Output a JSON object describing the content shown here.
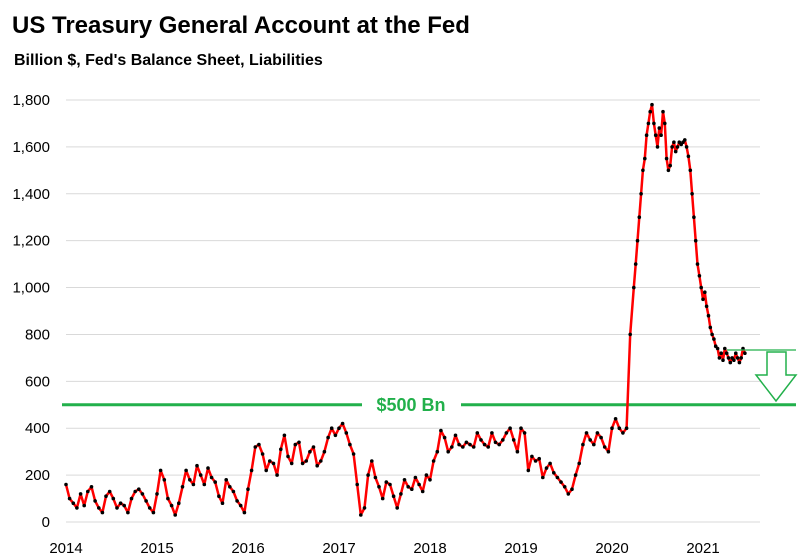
{
  "chart_data": {
    "type": "line",
    "title": "US Treasury General Account at the Fed",
    "subtitle": "Billion $, Fed's Balance Sheet, Liabilities",
    "xlabel": "",
    "ylabel": "",
    "xlim": [
      2014.0,
      2021.55
    ],
    "ylim": [
      0,
      1800
    ],
    "grid": true,
    "x_ticks": [
      "2014",
      "2015",
      "2016",
      "2017",
      "2018",
      "2019",
      "2020",
      "2021"
    ],
    "y_ticks": [
      "0",
      "200",
      "400",
      "600",
      "800",
      "1,000",
      "1,200",
      "1,400",
      "1,600",
      "1,800"
    ],
    "series_color": "#ff0000",
    "marker_color": "#000000",
    "reference_line": {
      "value": 500,
      "label": "$500 Bn",
      "color": "#22b04b"
    },
    "annotation": {
      "type": "down-arrow",
      "color": "#22b04b"
    },
    "series": [
      {
        "x": [
          2014.0,
          2014.04,
          2014.08,
          2014.12,
          2014.16,
          2014.2,
          2014.24,
          2014.28,
          2014.32,
          2014.36,
          2014.4,
          2014.44,
          2014.48,
          2014.52,
          2014.56,
          2014.6,
          2014.64,
          2014.68,
          2014.72,
          2014.76,
          2014.8,
          2014.84,
          2014.88,
          2014.92,
          2014.96,
          2015.0,
          2015.04,
          2015.08,
          2015.12,
          2015.16,
          2015.2,
          2015.24,
          2015.28,
          2015.32,
          2015.36,
          2015.4,
          2015.44,
          2015.48,
          2015.52,
          2015.56,
          2015.6,
          2015.64,
          2015.68,
          2015.72,
          2015.76,
          2015.8,
          2015.84,
          2015.88,
          2015.92,
          2015.96,
          2016.0,
          2016.04,
          2016.08,
          2016.12,
          2016.16,
          2016.2,
          2016.24,
          2016.28,
          2016.32,
          2016.36,
          2016.4,
          2016.44,
          2016.48,
          2016.52,
          2016.56,
          2016.6,
          2016.64,
          2016.68,
          2016.72,
          2016.76,
          2016.8,
          2016.84,
          2016.88,
          2016.92,
          2016.96,
          2017.0,
          2017.04,
          2017.08,
          2017.12,
          2017.16,
          2017.2,
          2017.24,
          2017.28,
          2017.32,
          2017.36,
          2017.4,
          2017.44,
          2017.48,
          2017.52,
          2017.56,
          2017.6,
          2017.64,
          2017.68,
          2017.72,
          2017.76,
          2017.8,
          2017.84,
          2017.88,
          2017.92,
          2017.96,
          2018.0,
          2018.04,
          2018.08,
          2018.12,
          2018.16,
          2018.2,
          2018.24,
          2018.28,
          2018.32,
          2018.36,
          2018.4,
          2018.44,
          2018.48,
          2018.52,
          2018.56,
          2018.6,
          2018.64,
          2018.68,
          2018.72,
          2018.76,
          2018.8,
          2018.84,
          2018.88,
          2018.92,
          2018.96,
          2019.0,
          2019.04,
          2019.08,
          2019.12,
          2019.16,
          2019.2,
          2019.24,
          2019.28,
          2019.32,
          2019.36,
          2019.4,
          2019.44,
          2019.48,
          2019.52,
          2019.56,
          2019.6,
          2019.64,
          2019.68,
          2019.72,
          2019.76,
          2019.8,
          2019.84,
          2019.88,
          2019.92,
          2019.96,
          2020.0,
          2020.04,
          2020.08,
          2020.12,
          2020.16,
          2020.2,
          2020.24,
          2020.26,
          2020.28,
          2020.3,
          2020.32,
          2020.34,
          2020.36,
          2020.38,
          2020.4,
          2020.42,
          2020.44,
          2020.46,
          2020.48,
          2020.5,
          2020.52,
          2020.54,
          2020.56,
          2020.58,
          2020.6,
          2020.62,
          2020.64,
          2020.66,
          2020.68,
          2020.7,
          2020.72,
          2020.74,
          2020.76,
          2020.78,
          2020.8,
          2020.82,
          2020.84,
          2020.86,
          2020.88,
          2020.9,
          2020.92,
          2020.94,
          2020.96,
          2020.98,
          2021.0,
          2021.02,
          2021.04,
          2021.06,
          2021.08,
          2021.1,
          2021.12,
          2021.14,
          2021.16,
          2021.18,
          2021.2,
          2021.22,
          2021.24,
          2021.26,
          2021.28,
          2021.3,
          2021.32,
          2021.34,
          2021.36,
          2021.38,
          2021.4,
          2021.42,
          2021.44,
          2021.46
        ],
        "y": [
          160,
          100,
          80,
          60,
          120,
          70,
          130,
          150,
          90,
          60,
          40,
          110,
          130,
          100,
          60,
          80,
          70,
          40,
          100,
          130,
          140,
          120,
          90,
          60,
          40,
          120,
          220,
          180,
          100,
          70,
          30,
          80,
          150,
          220,
          180,
          160,
          240,
          200,
          160,
          230,
          190,
          170,
          110,
          80,
          180,
          150,
          130,
          90,
          70,
          40,
          140,
          220,
          320,
          330,
          290,
          220,
          260,
          250,
          200,
          310,
          370,
          280,
          250,
          330,
          340,
          250,
          260,
          300,
          320,
          240,
          260,
          300,
          360,
          400,
          370,
          400,
          420,
          380,
          330,
          290,
          160,
          30,
          60,
          200,
          260,
          190,
          150,
          100,
          170,
          160,
          110,
          60,
          120,
          180,
          150,
          140,
          190,
          160,
          130,
          200,
          180,
          260,
          300,
          390,
          360,
          300,
          320,
          370,
          330,
          320,
          340,
          330,
          320,
          380,
          350,
          330,
          320,
          380,
          340,
          330,
          350,
          380,
          400,
          350,
          300,
          400,
          380,
          220,
          280,
          260,
          270,
          190,
          230,
          250,
          210,
          190,
          170,
          150,
          120,
          140,
          200,
          250,
          330,
          380,
          350,
          330,
          380,
          360,
          320,
          300,
          400,
          440,
          400,
          380,
          400,
          800,
          1000,
          1100,
          1200,
          1300,
          1400,
          1500,
          1550,
          1650,
          1700,
          1750,
          1780,
          1700,
          1650,
          1600,
          1680,
          1650,
          1750,
          1700,
          1550,
          1500,
          1520,
          1600,
          1620,
          1580,
          1600,
          1620,
          1610,
          1620,
          1630,
          1600,
          1560,
          1500,
          1400,
          1300,
          1200,
          1100,
          1050,
          1000,
          950,
          980,
          920,
          880,
          830,
          800,
          780,
          750,
          740,
          700,
          720,
          690,
          740,
          720,
          700,
          680,
          700,
          690,
          720,
          700,
          680,
          700,
          740,
          720
        ]
      }
    ]
  }
}
